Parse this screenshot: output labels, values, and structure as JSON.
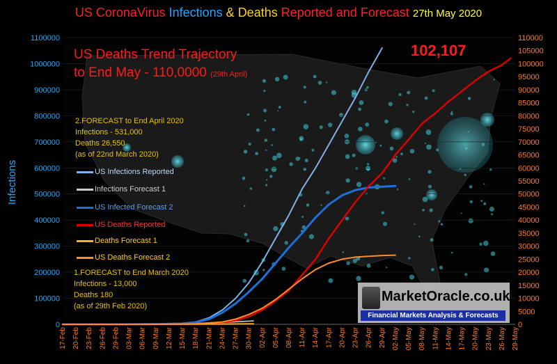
{
  "title": {
    "part1": "US CoronaVirus ",
    "part2": "Infections",
    "part3": " & ",
    "part4": "Deaths",
    "part5": " Reported and Forecast",
    "date": "27th May 2020"
  },
  "headline": {
    "line1": "US Deaths Trend Trajectory",
    "line2": "to End May - 110,0000",
    "line2_note": "(29th April)",
    "current_deaths": "102,107"
  },
  "forecast_april": {
    "line1": "2.FORECAST to End April 2020",
    "line2": "Infections - 531,000",
    "line3": "Deaths 26,550",
    "line4": "(as of 22nd March 2020)"
  },
  "forecast_march": {
    "line1": "1.FORECAST to End March 2020",
    "line2": "Infections - 13,000",
    "line3": "Deaths 180",
    "line4": "(as of  29th Feb  2020)"
  },
  "brand": {
    "name": "MarketOracle.co.uk",
    "tagline": "Financial Markets Analysis & Forecasts"
  },
  "colors": {
    "infections_reported": "#7fb2e8",
    "infections_forecast1": "#cccccc",
    "infected_forecast2": "#1e6fd8",
    "deaths_reported": "#e00000",
    "deaths_forecast1": "#ffb020",
    "deaths_forecast2": "#ff8c2a",
    "left_axis": "#1ea7ff",
    "right_axis": "#ff7a1a"
  },
  "chart_data": {
    "type": "line",
    "ylabel": "Infections",
    "ylim": [
      0,
      1100000
    ],
    "y2lim": [
      0,
      110000
    ],
    "left_ticks": [
      "0",
      "100000",
      "200000",
      "300000",
      "400000",
      "500000",
      "600000",
      "700000",
      "800000",
      "900000",
      "1000000",
      "1100000"
    ],
    "right_ticks": [
      "0",
      "5000",
      "10000",
      "15000",
      "20000",
      "25000",
      "30000",
      "35000",
      "40000",
      "45000",
      "50000",
      "55000",
      "60000",
      "65000",
      "70000",
      "75000",
      "80000",
      "85000",
      "90000",
      "95000",
      "100000",
      "105000",
      "110000"
    ],
    "x_ticks": [
      "17-Feb",
      "20-Feb",
      "23-Feb",
      "26-Feb",
      "29-Feb",
      "03-Mar",
      "06-Mar",
      "09-Mar",
      "12-Mar",
      "15-Mar",
      "18-Mar",
      "21-Mar",
      "24-Mar",
      "27-Mar",
      "30-Mar",
      "02-Apr",
      "05-Apr",
      "08-Apr",
      "11-Apr",
      "14-Apr",
      "17-Apr",
      "20-Apr",
      "23-Apr",
      "26-Apr",
      "29-Apr",
      "02-May",
      "05-May",
      "08-May",
      "11-May",
      "14-May",
      "17-May",
      "20-May",
      "23-May",
      "26-May",
      "29-May"
    ],
    "legend_position": "left",
    "series": [
      {
        "name": "US Infections Reported",
        "axis": "left",
        "color_key": "infections_reported",
        "x": [
          "17-Feb",
          "29-Feb",
          "10-Mar",
          "15-Mar",
          "18-Mar",
          "21-Mar",
          "24-Mar",
          "27-Mar",
          "30-Mar",
          "02-Apr",
          "05-Apr",
          "08-Apr",
          "11-Apr",
          "14-Apr",
          "17-Apr",
          "20-Apr",
          "23-Apr",
          "26-Apr",
          "29-Apr"
        ],
        "y": [
          0,
          0,
          1000,
          4000,
          9000,
          25000,
          55000,
          100000,
          160000,
          240000,
          330000,
          420000,
          520000,
          600000,
          690000,
          780000,
          870000,
          970000,
          1060000
        ]
      },
      {
        "name": "Infections Forecast 1",
        "axis": "left",
        "color_key": "infections_forecast1",
        "x": [
          "17-Feb",
          "29-Feb",
          "06-Mar",
          "12-Mar",
          "18-Mar",
          "24-Mar",
          "31-Mar"
        ],
        "y": [
          0,
          0,
          500,
          1500,
          3500,
          7000,
          13000
        ]
      },
      {
        "name": "US Infected Forecast 2",
        "axis": "left",
        "color_key": "infected_forecast2",
        "x": [
          "17-Feb",
          "29-Feb",
          "10-Mar",
          "15-Mar",
          "18-Mar",
          "21-Mar",
          "24-Mar",
          "27-Mar",
          "30-Mar",
          "02-Apr",
          "05-Apr",
          "08-Apr",
          "11-Apr",
          "14-Apr",
          "17-Apr",
          "20-Apr",
          "23-Apr",
          "26-Apr",
          "29-Apr",
          "02-May"
        ],
        "y": [
          0,
          0,
          1000,
          3000,
          8000,
          20000,
          45000,
          80000,
          125000,
          175000,
          235000,
          295000,
          350000,
          410000,
          460000,
          495000,
          515000,
          525000,
          528000,
          531000
        ]
      },
      {
        "name": "US Deaths Reported",
        "axis": "right",
        "color_key": "deaths_reported",
        "x": [
          "17-Feb",
          "29-Feb",
          "10-Mar",
          "15-Mar",
          "18-Mar",
          "21-Mar",
          "24-Mar",
          "27-Mar",
          "30-Mar",
          "02-Apr",
          "05-Apr",
          "08-Apr",
          "11-Apr",
          "14-Apr",
          "17-Apr",
          "20-Apr",
          "23-Apr",
          "26-Apr",
          "29-Apr",
          "02-May",
          "05-May",
          "08-May",
          "11-May",
          "14-May",
          "17-May",
          "20-May",
          "23-May",
          "26-May",
          "28-May"
        ],
        "y": [
          0,
          0,
          30,
          70,
          120,
          300,
          700,
          1500,
          3000,
          5500,
          9000,
          13000,
          19000,
          25000,
          33000,
          40000,
          47000,
          53000,
          58000,
          65000,
          71000,
          77000,
          81000,
          85500,
          89500,
          93500,
          97000,
          99500,
          102107
        ]
      },
      {
        "name": "Deaths Forecast 1",
        "axis": "right",
        "color_key": "deaths_forecast1",
        "x": [
          "17-Feb",
          "29-Feb",
          "06-Mar",
          "12-Mar",
          "18-Mar",
          "24-Mar",
          "31-Mar"
        ],
        "y": [
          0,
          0,
          10,
          30,
          60,
          110,
          180
        ]
      },
      {
        "name": "US Deaths Forecast 2",
        "axis": "right",
        "color_key": "deaths_forecast2",
        "x": [
          "17-Feb",
          "29-Feb",
          "10-Mar",
          "18-Mar",
          "24-Mar",
          "27-Mar",
          "30-Mar",
          "02-Apr",
          "05-Apr",
          "08-Apr",
          "11-Apr",
          "14-Apr",
          "17-Apr",
          "20-Apr",
          "23-Apr",
          "26-Apr",
          "29-Apr",
          "02-May"
        ],
        "y": [
          0,
          0,
          40,
          200,
          900,
          2000,
          3800,
          6200,
          9500,
          13500,
          17500,
          21000,
          23500,
          25000,
          25800,
          26100,
          26400,
          26550
        ]
      }
    ]
  }
}
